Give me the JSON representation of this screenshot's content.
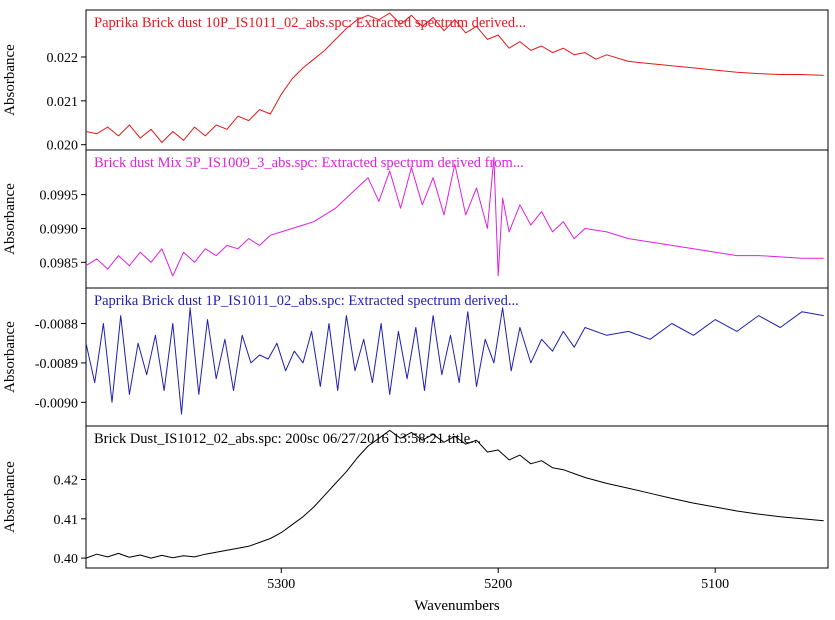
{
  "chart_data": {
    "type": "line",
    "xlabel": "Wavenumbers",
    "xlim": [
      5390,
      5048
    ],
    "x_ticks": [
      5300,
      5200,
      5100
    ],
    "x_reversed": true,
    "panels": [
      {
        "title": "Paprika Brick dust 10P_IS1011_02_abs.spc: Extracted spectrum derived...",
        "ylabel": "Absorbance",
        "ylim": [
          0.01997,
          0.02298
        ],
        "y_ticks": [
          "0.020",
          "0.021",
          "0.022"
        ],
        "color": "#e41a1c",
        "x": [
          5390,
          5385,
          5380,
          5375,
          5370,
          5365,
          5360,
          5355,
          5350,
          5345,
          5340,
          5335,
          5330,
          5325,
          5320,
          5315,
          5310,
          5305,
          5300,
          5295,
          5290,
          5285,
          5280,
          5275,
          5270,
          5265,
          5260,
          5255,
          5250,
          5245,
          5240,
          5235,
          5230,
          5225,
          5220,
          5215,
          5210,
          5205,
          5200,
          5195,
          5190,
          5185,
          5180,
          5175,
          5170,
          5165,
          5160,
          5155,
          5150,
          5140,
          5130,
          5120,
          5110,
          5100,
          5090,
          5080,
          5070,
          5060,
          5050
        ],
        "values": [
          0.0203,
          0.02025,
          0.0204,
          0.0202,
          0.02045,
          0.02015,
          0.02035,
          0.02005,
          0.0203,
          0.0201,
          0.0204,
          0.0202,
          0.02045,
          0.02035,
          0.02065,
          0.02055,
          0.0208,
          0.0207,
          0.02115,
          0.0215,
          0.02175,
          0.02195,
          0.02215,
          0.0224,
          0.02265,
          0.02285,
          0.02295,
          0.02285,
          0.023,
          0.02275,
          0.02295,
          0.0227,
          0.0229,
          0.0226,
          0.02285,
          0.02255,
          0.0227,
          0.0224,
          0.0225,
          0.0222,
          0.02235,
          0.02215,
          0.02225,
          0.0221,
          0.0222,
          0.02205,
          0.0221,
          0.02195,
          0.02205,
          0.0219,
          0.02185,
          0.0218,
          0.02175,
          0.0217,
          0.02165,
          0.02162,
          0.0216,
          0.0216,
          0.02158
        ]
      },
      {
        "title": "Brick dust Mix 5P_IS1009_3_abs.spc: Extracted spectrum derived from...",
        "ylabel": "Absorbance",
        "ylim": [
          0.09818,
          0.1001
        ],
        "y_ticks": [
          "0.0985",
          "0.0990",
          "0.0995"
        ],
        "color": "#e020e0",
        "x": [
          5390,
          5385,
          5380,
          5375,
          5370,
          5365,
          5360,
          5355,
          5350,
          5345,
          5340,
          5335,
          5330,
          5325,
          5320,
          5315,
          5310,
          5305,
          5300,
          5295,
          5290,
          5285,
          5280,
          5275,
          5270,
          5265,
          5260,
          5255,
          5250,
          5245,
          5240,
          5235,
          5230,
          5225,
          5220,
          5215,
          5210,
          5205,
          5202,
          5200,
          5198,
          5195,
          5190,
          5185,
          5180,
          5175,
          5170,
          5165,
          5160,
          5150,
          5140,
          5130,
          5120,
          5110,
          5100,
          5090,
          5080,
          5070,
          5060,
          5050
        ],
        "values": [
          0.09845,
          0.09855,
          0.0984,
          0.0986,
          0.09845,
          0.09865,
          0.0985,
          0.0987,
          0.0983,
          0.09865,
          0.0985,
          0.0987,
          0.0986,
          0.09875,
          0.0987,
          0.09885,
          0.09875,
          0.0989,
          0.09895,
          0.099,
          0.09905,
          0.0991,
          0.0992,
          0.0993,
          0.09945,
          0.0996,
          0.09975,
          0.0994,
          0.09985,
          0.0993,
          0.0999,
          0.09935,
          0.09975,
          0.0992,
          0.09995,
          0.0992,
          0.0996,
          0.099,
          0.10005,
          0.0983,
          0.09945,
          0.09895,
          0.09935,
          0.09905,
          0.09925,
          0.09895,
          0.0991,
          0.09885,
          0.099,
          0.09895,
          0.09885,
          0.0988,
          0.09875,
          0.0987,
          0.09865,
          0.0986,
          0.0986,
          0.09858,
          0.09856,
          0.09856
        ]
      },
      {
        "title": "Paprika Brick dust 1P_IS1011_02_abs.spc: Extracted spectrum derived...",
        "ylabel": "Absorbance",
        "ylim": [
          -0.00905,
          -0.00872
        ],
        "y_ticks": [
          "-0.0090",
          "-0.0089",
          "-0.0088"
        ],
        "color": "#1f1fb4",
        "x": [
          5390,
          5386,
          5382,
          5378,
          5374,
          5370,
          5366,
          5362,
          5358,
          5354,
          5350,
          5346,
          5342,
          5338,
          5334,
          5330,
          5326,
          5322,
          5318,
          5314,
          5310,
          5306,
          5302,
          5298,
          5294,
          5290,
          5286,
          5282,
          5278,
          5274,
          5270,
          5266,
          5262,
          5258,
          5254,
          5250,
          5246,
          5242,
          5238,
          5234,
          5230,
          5226,
          5222,
          5218,
          5214,
          5210,
          5206,
          5202,
          5198,
          5194,
          5190,
          5185,
          5180,
          5175,
          5170,
          5165,
          5160,
          5150,
          5140,
          5130,
          5120,
          5110,
          5100,
          5090,
          5080,
          5070,
          5060,
          5050
        ],
        "values": [
          -0.00885,
          -0.00895,
          -0.0088,
          -0.009,
          -0.00878,
          -0.00898,
          -0.00885,
          -0.00893,
          -0.00883,
          -0.00897,
          -0.0088,
          -0.00903,
          -0.00876,
          -0.00898,
          -0.00879,
          -0.00894,
          -0.00884,
          -0.00897,
          -0.00883,
          -0.0089,
          -0.00888,
          -0.00889,
          -0.00885,
          -0.00892,
          -0.00887,
          -0.0089,
          -0.00882,
          -0.00896,
          -0.0088,
          -0.00897,
          -0.00878,
          -0.00892,
          -0.00884,
          -0.00895,
          -0.0088,
          -0.00898,
          -0.00882,
          -0.00894,
          -0.00881,
          -0.00897,
          -0.00878,
          -0.00893,
          -0.00883,
          -0.00895,
          -0.00877,
          -0.00896,
          -0.00884,
          -0.0089,
          -0.00876,
          -0.00892,
          -0.00881,
          -0.0089,
          -0.00884,
          -0.00887,
          -0.00882,
          -0.00886,
          -0.00881,
          -0.00883,
          -0.00882,
          -0.00884,
          -0.0088,
          -0.00883,
          -0.00879,
          -0.00882,
          -0.00878,
          -0.00881,
          -0.00877,
          -0.00878
        ]
      },
      {
        "title": "Brick Dust_IS1012_02_abs.spc: 200sc 06/27/2016 13:58:21 title...",
        "ylabel": "Absorbance",
        "ylim": [
          0.3985,
          0.4326
        ],
        "y_ticks": [
          "0.40",
          "0.41",
          "0.42"
        ],
        "color": "#000000",
        "x": [
          5390,
          5385,
          5380,
          5375,
          5370,
          5365,
          5360,
          5355,
          5350,
          5345,
          5340,
          5335,
          5330,
          5325,
          5320,
          5315,
          5310,
          5305,
          5300,
          5295,
          5290,
          5285,
          5280,
          5275,
          5270,
          5265,
          5260,
          5255,
          5250,
          5245,
          5240,
          5235,
          5230,
          5225,
          5220,
          5215,
          5210,
          5205,
          5200,
          5195,
          5190,
          5185,
          5180,
          5175,
          5170,
          5165,
          5160,
          5150,
          5140,
          5130,
          5120,
          5110,
          5100,
          5090,
          5080,
          5070,
          5060,
          5050
        ],
        "values": [
          0.4,
          0.401,
          0.4003,
          0.4012,
          0.4002,
          0.4008,
          0.4,
          0.4007,
          0.4001,
          0.4006,
          0.4003,
          0.401,
          0.4015,
          0.402,
          0.4025,
          0.403,
          0.404,
          0.405,
          0.4065,
          0.4085,
          0.4105,
          0.413,
          0.416,
          0.419,
          0.422,
          0.4255,
          0.4285,
          0.4305,
          0.4325,
          0.4305,
          0.432,
          0.43,
          0.4315,
          0.4295,
          0.431,
          0.429,
          0.43,
          0.427,
          0.4275,
          0.425,
          0.4262,
          0.424,
          0.4248,
          0.423,
          0.4225,
          0.4215,
          0.4205,
          0.419,
          0.4178,
          0.4165,
          0.4152,
          0.414,
          0.413,
          0.412,
          0.4112,
          0.4105,
          0.41,
          0.4095
        ]
      }
    ]
  }
}
